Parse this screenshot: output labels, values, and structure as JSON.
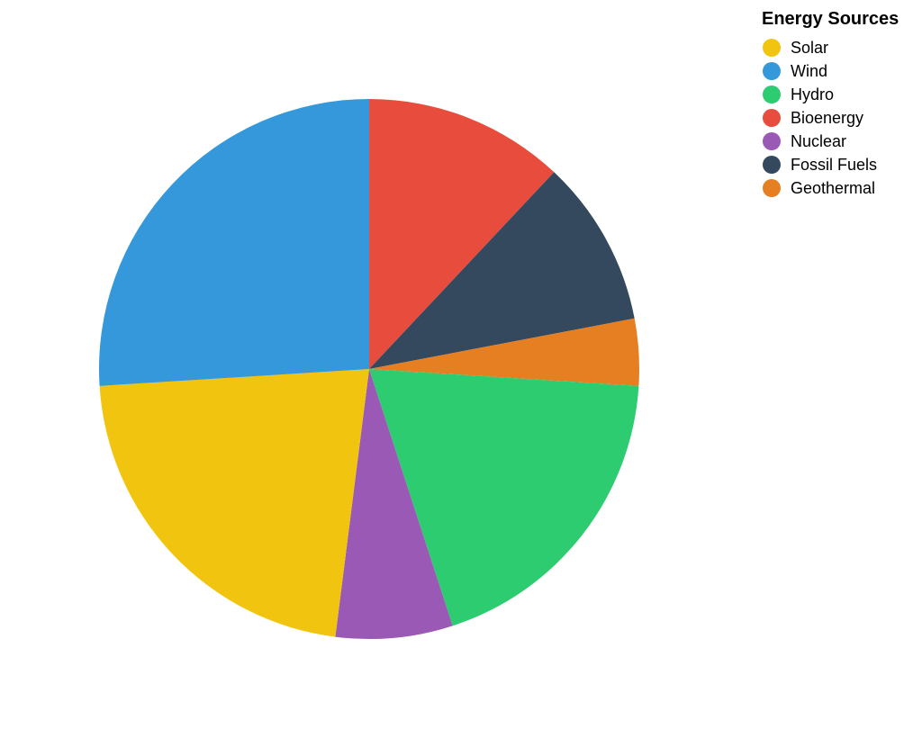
{
  "chart_data": {
    "type": "pie",
    "legend_title": "Energy Sources",
    "legend_position": "top-right",
    "start_angle_deg": 0,
    "direction": "clockwise",
    "categories": [
      "Bioenergy",
      "Fossil Fuels",
      "Geothermal",
      "Hydro",
      "Nuclear",
      "Solar",
      "Wind"
    ],
    "values": [
      12,
      10,
      4,
      19,
      7,
      22,
      26
    ],
    "colors": [
      "#e74c3c",
      "#34495e",
      "#e67e22",
      "#2ecc71",
      "#9b59b6",
      "#f1c40f",
      "#3498db"
    ],
    "legend": [
      {
        "label": "Solar",
        "color": "#f1c40f"
      },
      {
        "label": "Wind",
        "color": "#3498db"
      },
      {
        "label": "Hydro",
        "color": "#2ecc71"
      },
      {
        "label": "Bioenergy",
        "color": "#e74c3c"
      },
      {
        "label": "Nuclear",
        "color": "#9b59b6"
      },
      {
        "label": "Fossil Fuels",
        "color": "#34495e"
      },
      {
        "label": "Geothermal",
        "color": "#e67e22"
      }
    ]
  }
}
